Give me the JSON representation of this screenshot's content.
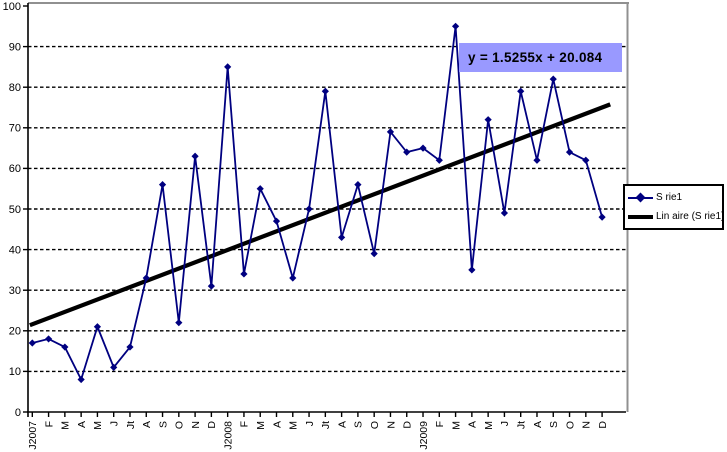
{
  "chart_data": {
    "type": "line",
    "title": "",
    "xlabel": "",
    "ylabel": "",
    "ylim": [
      0,
      100
    ],
    "y_tick_step": 10,
    "y_ticks": [
      "0",
      "10",
      "20",
      "30",
      "40",
      "50",
      "60",
      "70",
      "80",
      "90",
      "100"
    ],
    "grid": "horizontal-dashed",
    "legend_position": "right",
    "categories": [
      "J2007",
      "F",
      "M",
      "A",
      "M",
      "J",
      "Jt",
      "A",
      "S",
      "O",
      "N",
      "D",
      "J2008",
      "F",
      "M",
      "A",
      "M",
      "J",
      "Jt",
      "A",
      "S",
      "O",
      "N",
      "D",
      "J2009",
      "F",
      "M",
      "A",
      "M",
      "J",
      "Jt",
      "A",
      "S",
      "O",
      "N",
      "D"
    ],
    "series": [
      {
        "name": "S rie1",
        "color": "#000080",
        "values": [
          17,
          18,
          16,
          8,
          21,
          11,
          16,
          33,
          56,
          22,
          63,
          31,
          85,
          34,
          55,
          47,
          33,
          50,
          79,
          43,
          56,
          39,
          69,
          64,
          65,
          62,
          95,
          35,
          72,
          49,
          79,
          62,
          82,
          64,
          62,
          48
        ]
      }
    ],
    "trendline": {
      "label": "Lin aire (S rie1)",
      "equation_text": "y = 1.5255x + 20.084",
      "slope": 1.5255,
      "intercept": 20.084,
      "color": "#000000"
    }
  },
  "equation": {
    "text": "y = 1.5255x + 20.084",
    "bg_color": "#9999ff"
  },
  "legend": {
    "series_label": "S rie1",
    "trend_label": "Lin aire (S rie1)"
  },
  "colors": {
    "series": "#000080",
    "trend": "#000000",
    "plot_border": "#909090",
    "grid": "#000000",
    "axis": "#000000",
    "background": "#ffffff"
  }
}
